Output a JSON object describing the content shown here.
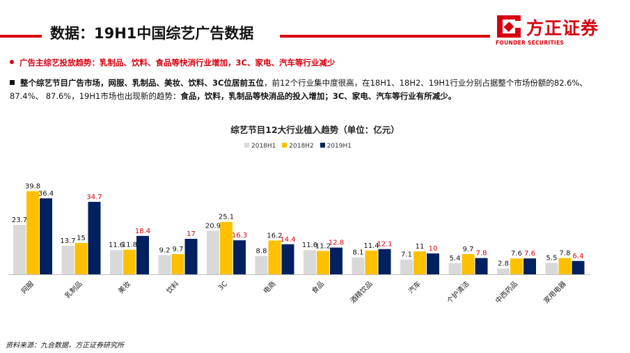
{
  "header": {
    "title": "数据：19H1中国综艺广告数据",
    "logo_name": "方正证券",
    "logo_en": "FOUNDER SECURITIES",
    "accent_color": "#d7000f"
  },
  "bullets": {
    "trend": "广告主综艺投放趋势：乳制品、饮料、食品等快消行业增加，3C、家电、汽车等行业减少",
    "summary_bold": "整个综艺节目广告市场，网服、乳制品、美妆、饮料、3C位居前五位",
    "summary_mid": "，前12个行业集中度很高，在18H1、18H2、19H1行业分别占据整个市场份额的82.6%、 87.4%、 87.6%，19H1市场也出现新的趋势：",
    "summary_end": "食品，饮料，乳制品等快消品的投入增加；3C、家电、汽车等行业有所减少。"
  },
  "source": "资料来源：九合数据，方正证券研究所",
  "chart_data": {
    "type": "bar",
    "title": "综艺节目12大行业植入趋势（单位：亿元）",
    "categories": [
      "网服",
      "乳制品",
      "美妆",
      "饮料",
      "3C",
      "电商",
      "食品",
      "酒精饮品",
      "汽车",
      "个护清洁",
      "中西药品",
      "家用电器"
    ],
    "series": [
      {
        "name": "2018H1",
        "color": "#d9d9d9",
        "values": [
          23.7,
          13.7,
          11.6,
          9.2,
          20.9,
          8.8,
          11.6,
          8.1,
          7.1,
          5.4,
          2.8,
          5.5
        ]
      },
      {
        "name": "2018H2",
        "color": "#ffc000",
        "values": [
          39.8,
          15,
          11.8,
          9.7,
          25.1,
          16.2,
          11.2,
          11.4,
          11,
          9.7,
          7.6,
          7.8
        ]
      },
      {
        "name": "2019H1",
        "color": "#002060",
        "values": [
          36.4,
          34.7,
          18.4,
          17,
          16.3,
          14.4,
          12.8,
          12.1,
          10,
          7.8,
          7.6,
          6.4
        ]
      }
    ],
    "value_label_color": "#111111",
    "highlight_label_color": "#d7000f",
    "ylim": [
      0,
      42
    ],
    "grid": false,
    "legend_position": "top-center"
  }
}
